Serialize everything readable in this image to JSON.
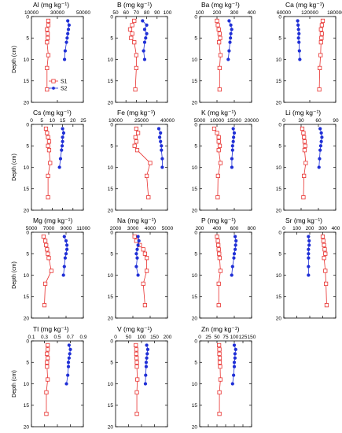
{
  "figure": {
    "ylabel": "Depth (cm)",
    "legend": [
      {
        "name": "S1",
        "color": "#e8312f",
        "marker": "open-square"
      },
      {
        "name": "S2",
        "color": "#1f2fd6",
        "marker": "filled-circle"
      }
    ]
  },
  "chart_data": [
    {
      "type": "line",
      "title": "Al (mg kg⁻¹)",
      "xlim": [
        10000,
        50000
      ],
      "xticks": [
        10000,
        30000,
        50000
      ],
      "ylim": [
        0,
        20
      ],
      "yticks": [
        0,
        5,
        10,
        15,
        20
      ],
      "series": [
        {
          "name": "S1",
          "x": [
            23000,
            23000,
            22000,
            22500,
            22500,
            22000,
            23000,
            22000,
            22000
          ],
          "y": [
            1,
            2,
            3,
            4,
            5,
            6,
            9,
            12,
            17
          ]
        },
        {
          "name": "S2",
          "x": [
            38000,
            39000,
            38500,
            38000,
            37500,
            37000,
            36000,
            35500
          ],
          "y": [
            1,
            2,
            3,
            4,
            5,
            6,
            8,
            10
          ]
        }
      ]
    },
    {
      "type": "line",
      "title": "B (mg kg⁻¹)",
      "xlim": [
        50,
        100
      ],
      "xticks": [
        50,
        60,
        70,
        80,
        90,
        100
      ],
      "ylim": [
        0,
        20
      ],
      "yticks": [
        0,
        5,
        10,
        15,
        20
      ],
      "series": [
        {
          "name": "S1",
          "x": [
            68,
            66,
            64,
            66,
            65,
            68,
            70,
            70,
            69
          ],
          "y": [
            1,
            2,
            3,
            4,
            5,
            6,
            9,
            12,
            17
          ]
        },
        {
          "name": "S2",
          "x": [
            76,
            80,
            78,
            80,
            79,
            78,
            77,
            78
          ],
          "y": [
            1,
            2,
            3,
            4,
            5,
            6,
            8,
            10
          ]
        }
      ]
    },
    {
      "type": "line",
      "title": "Ba (mg kg⁻¹)",
      "xlim": [
        100,
        400
      ],
      "xticks": [
        100,
        200,
        300,
        400
      ],
      "ylim": [
        0,
        20
      ],
      "yticks": [
        0,
        5,
        10,
        15,
        20
      ],
      "series": [
        {
          "name": "S1",
          "x": [
            200,
            205,
            210,
            215,
            218,
            212,
            220,
            215,
            215
          ],
          "y": [
            1,
            2,
            3,
            4,
            5,
            6,
            9,
            12,
            17
          ]
        },
        {
          "name": "S2",
          "x": [
            270,
            280,
            285,
            280,
            278,
            275,
            270,
            265
          ],
          "y": [
            1,
            2,
            3,
            4,
            5,
            6,
            8,
            10
          ]
        }
      ]
    },
    {
      "type": "line",
      "title": "Ca (mg kg⁻¹)",
      "xlim": [
        60000,
        180000
      ],
      "xticks": [
        60000,
        120000,
        180000
      ],
      "ylim": [
        0,
        20
      ],
      "yticks": [
        0,
        5,
        10,
        15,
        20
      ],
      "series": [
        {
          "name": "S1",
          "x": [
            150000,
            148000,
            146000,
            148000,
            147000,
            146000,
            145000,
            143000,
            142000
          ],
          "y": [
            1,
            2,
            3,
            4,
            5,
            6,
            9,
            12,
            17
          ]
        },
        {
          "name": "S2",
          "x": [
            92000,
            93000,
            94000,
            95000,
            94000,
            95000,
            96000,
            97000
          ],
          "y": [
            1,
            2,
            3,
            4,
            5,
            6,
            8,
            10
          ]
        }
      ]
    },
    {
      "type": "line",
      "title": "Cs (mg kg⁻¹)",
      "xlim": [
        0,
        25
      ],
      "xticks": [
        0,
        5,
        10,
        15,
        20,
        25
      ],
      "ylim": [
        0,
        20
      ],
      "yticks": [
        0,
        5,
        10,
        15,
        20
      ],
      "series": [
        {
          "name": "S1",
          "x": [
            7,
            7.5,
            8,
            8.5,
            8,
            8.5,
            9,
            8,
            8
          ],
          "y": [
            1,
            2,
            3,
            4,
            5,
            6,
            9,
            12,
            17
          ]
        },
        {
          "name": "S2",
          "x": [
            15,
            15.5,
            15,
            15,
            14.8,
            14.5,
            14,
            13.5
          ],
          "y": [
            1,
            2,
            3,
            4,
            5,
            6,
            8,
            10
          ]
        }
      ]
    },
    {
      "type": "line",
      "title": "Fe (mg kg⁻¹)",
      "xlim": [
        10000,
        40000
      ],
      "xticks": [
        10000,
        25000,
        40000
      ],
      "ylim": [
        0,
        20
      ],
      "yticks": [
        0,
        5,
        10,
        15,
        20
      ],
      "series": [
        {
          "name": "S1",
          "x": [
            22000,
            23000,
            21500,
            22000,
            21000,
            22500,
            30000,
            28000,
            29000
          ],
          "y": [
            1,
            2,
            3,
            4,
            5,
            6,
            9,
            12,
            17
          ]
        },
        {
          "name": "S2",
          "x": [
            35000,
            36000,
            35500,
            36000,
            36500,
            36500,
            37000,
            37000
          ],
          "y": [
            1,
            2,
            3,
            4,
            5,
            6,
            8,
            10
          ]
        }
      ]
    },
    {
      "type": "line",
      "title": "K (mg kg⁻¹)",
      "xlim": [
        5000,
        20000
      ],
      "xticks": [
        5000,
        10000,
        15000,
        20000
      ],
      "ylim": [
        0,
        20
      ],
      "yticks": [
        0,
        5,
        10,
        15,
        20
      ],
      "series": [
        {
          "name": "S1",
          "x": [
            9200,
            10000,
            10500,
            10500,
            10800,
            10500,
            11000,
            10300,
            10200
          ],
          "y": [
            1,
            2,
            3,
            4,
            5,
            6,
            9,
            12,
            17
          ]
        },
        {
          "name": "S2",
          "x": [
            14700,
            15000,
            14800,
            14700,
            14500,
            14500,
            14300,
            14300
          ],
          "y": [
            1,
            2,
            3,
            4,
            5,
            6,
            8,
            10
          ]
        }
      ]
    },
    {
      "type": "line",
      "title": "Li (mg kg⁻¹)",
      "xlim": [
        0,
        90
      ],
      "xticks": [
        0,
        30,
        60,
        90
      ],
      "ylim": [
        0,
        20
      ],
      "yticks": [
        0,
        5,
        10,
        15,
        20
      ],
      "series": [
        {
          "name": "S1",
          "x": [
            32,
            34,
            35,
            36,
            37,
            36,
            38,
            35,
            34
          ],
          "y": [
            1,
            2,
            3,
            4,
            5,
            6,
            9,
            12,
            17
          ]
        },
        {
          "name": "S2",
          "x": [
            63,
            65,
            66,
            65,
            64,
            63,
            62,
            61
          ],
          "y": [
            1,
            2,
            3,
            4,
            5,
            6,
            8,
            10
          ]
        }
      ]
    },
    {
      "type": "line",
      "title": "Mg (mg kg⁻¹)",
      "xlim": [
        5000,
        11000
      ],
      "xticks": [
        5000,
        7000,
        9000,
        11000
      ],
      "ylim": [
        0,
        20
      ],
      "yticks": [
        0,
        5,
        10,
        15,
        20
      ],
      "series": [
        {
          "name": "S1",
          "x": [
            6400,
            6600,
            6700,
            6800,
            6900,
            7000,
            7300,
            6600,
            6500
          ],
          "y": [
            1,
            2,
            3,
            4,
            5,
            6,
            9,
            12,
            17
          ]
        },
        {
          "name": "S2",
          "x": [
            8800,
            9000,
            9100,
            9100,
            9000,
            8900,
            8800,
            8700
          ],
          "y": [
            1,
            2,
            3,
            4,
            5,
            6,
            8,
            10
          ]
        }
      ]
    },
    {
      "type": "line",
      "title": "Na (mg kg⁻¹)",
      "xlim": [
        2000,
        5000
      ],
      "xticks": [
        2000,
        3000,
        4000,
        5000
      ],
      "ylim": [
        0,
        20
      ],
      "yticks": [
        0,
        5,
        10,
        15,
        20
      ],
      "series": [
        {
          "name": "S1",
          "x": [
            3100,
            3200,
            3400,
            3600,
            3700,
            3800,
            3800,
            3600,
            3700
          ],
          "y": [
            1,
            2,
            3,
            4,
            5,
            6,
            9,
            12,
            17
          ]
        },
        {
          "name": "S2",
          "x": [
            3300,
            3350,
            3300,
            3250,
            3200,
            3250,
            3200,
            3300
          ],
          "y": [
            1,
            2,
            3,
            4,
            5,
            6,
            8,
            10
          ]
        }
      ]
    },
    {
      "type": "line",
      "title": "P (mg kg⁻¹)",
      "xlim": [
        200,
        800
      ],
      "xticks": [
        200,
        400,
        600,
        800
      ],
      "ylim": [
        0,
        20
      ],
      "yticks": [
        0,
        5,
        10,
        15,
        20
      ],
      "series": [
        {
          "name": "S1",
          "x": [
            400,
            410,
            415,
            420,
            425,
            430,
            440,
            420,
            420
          ],
          "y": [
            1,
            2,
            3,
            4,
            5,
            6,
            9,
            12,
            17
          ]
        },
        {
          "name": "S2",
          "x": [
            610,
            620,
            615,
            610,
            600,
            595,
            580,
            570
          ],
          "y": [
            1,
            2,
            3,
            4,
            5,
            6,
            8,
            10
          ]
        }
      ]
    },
    {
      "type": "line",
      "title": "Sr (mg kg⁻¹)",
      "xlim": [
        0,
        400
      ],
      "xticks": [
        0,
        100,
        200,
        300,
        400
      ],
      "ylim": [
        0,
        20
      ],
      "yticks": [
        0,
        5,
        10,
        15,
        20
      ],
      "series": [
        {
          "name": "S1",
          "x": [
            300,
            305,
            310,
            315,
            320,
            310,
            320,
            325,
            330
          ],
          "y": [
            1,
            2,
            3,
            4,
            5,
            6,
            9,
            12,
            17
          ]
        },
        {
          "name": "S2",
          "x": [
            190,
            195,
            195,
            190,
            190,
            190,
            190,
            190
          ],
          "y": [
            1,
            2,
            3,
            4,
            5,
            6,
            8,
            10
          ]
        }
      ]
    },
    {
      "type": "line",
      "title": "Tl (mg kg⁻¹)",
      "xlim": [
        0.1,
        0.9
      ],
      "xticks": [
        0.1,
        0.3,
        0.5,
        0.7,
        0.9
      ],
      "ylim": [
        0,
        20
      ],
      "yticks": [
        0,
        5,
        10,
        15,
        20
      ],
      "series": [
        {
          "name": "S1",
          "x": [
            0.35,
            0.35,
            0.34,
            0.35,
            0.34,
            0.34,
            0.35,
            0.33,
            0.33
          ],
          "y": [
            1,
            2,
            3,
            4,
            5,
            6,
            9,
            12,
            17
          ]
        },
        {
          "name": "S2",
          "x": [
            0.68,
            0.7,
            0.69,
            0.68,
            0.67,
            0.67,
            0.66,
            0.64
          ],
          "y": [
            1,
            2,
            3,
            4,
            5,
            6,
            8,
            10
          ]
        }
      ]
    },
    {
      "type": "line",
      "title": "V (mg kg⁻¹)",
      "xlim": [
        0,
        200
      ],
      "xticks": [
        0,
        50,
        100,
        150,
        200
      ],
      "ylim": [
        0,
        20
      ],
      "yticks": [
        0,
        5,
        10,
        15,
        20
      ],
      "series": [
        {
          "name": "S1",
          "x": [
            78,
            80,
            80,
            81,
            82,
            82,
            84,
            82,
            82
          ],
          "y": [
            1,
            2,
            3,
            4,
            5,
            6,
            9,
            12,
            17
          ]
        },
        {
          "name": "S2",
          "x": [
            120,
            124,
            122,
            120,
            118,
            118,
            116,
            115
          ],
          "y": [
            1,
            2,
            3,
            4,
            5,
            6,
            8,
            10
          ]
        }
      ]
    },
    {
      "type": "line",
      "title": "Zn (mg kg⁻¹)",
      "xlim": [
        0,
        150
      ],
      "xticks": [
        0,
        25,
        50,
        75,
        100,
        125,
        150
      ],
      "ylim": [
        0,
        20
      ],
      "yticks": [
        0,
        5,
        10,
        15,
        20
      ],
      "series": [
        {
          "name": "S1",
          "x": [
            56,
            57,
            57,
            58,
            58,
            59,
            60,
            57,
            57
          ],
          "y": [
            1,
            2,
            3,
            4,
            5,
            6,
            9,
            12,
            17
          ]
        },
        {
          "name": "S2",
          "x": [
            100,
            104,
            102,
            102,
            100,
            100,
            98,
            95
          ],
          "y": [
            1,
            2,
            3,
            4,
            5,
            6,
            8,
            10
          ]
        }
      ]
    }
  ]
}
